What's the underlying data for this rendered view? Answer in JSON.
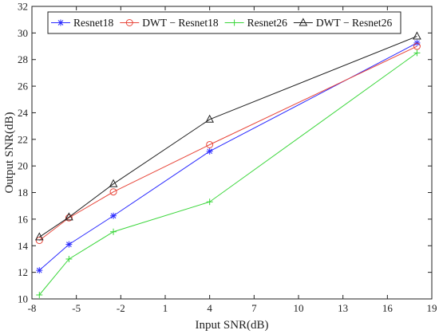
{
  "chart_data": {
    "type": "line",
    "xlabel": "Input SNR(dB)",
    "ylabel": "Output SNR(dB)",
    "xlim": [
      -8,
      19
    ],
    "ylim": [
      10,
      32
    ],
    "xticks": [
      -8,
      -5,
      -2,
      1,
      4,
      7,
      10,
      13,
      16,
      19
    ],
    "yticks": [
      10,
      12,
      14,
      16,
      18,
      20,
      22,
      24,
      26,
      28,
      30,
      32
    ],
    "grid": false,
    "legend_position": "top",
    "x": [
      -7.5,
      -5.5,
      -2.5,
      4,
      18
    ],
    "series": [
      {
        "name": "Resnet18",
        "values": [
          12.15,
          14.1,
          16.25,
          21.1,
          29.25
        ],
        "color": "#2a2aff",
        "marker": "star"
      },
      {
        "name": "DWT − Resnet18",
        "values": [
          14.4,
          16.1,
          18.05,
          21.6,
          29.0
        ],
        "color": "#e8473b",
        "marker": "circle"
      },
      {
        "name": "Resnet26",
        "values": [
          10.3,
          13.0,
          15.05,
          17.3,
          28.5
        ],
        "color": "#3ad63a",
        "marker": "plus"
      },
      {
        "name": "DWT − Resnet26",
        "values": [
          14.65,
          16.15,
          18.65,
          23.5,
          29.75
        ],
        "color": "#222222",
        "marker": "triangle"
      }
    ]
  }
}
